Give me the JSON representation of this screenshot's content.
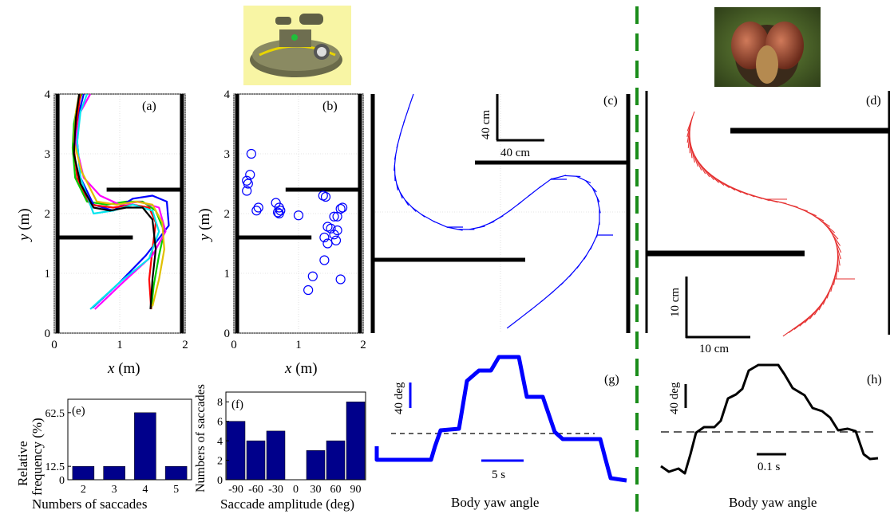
{
  "chart_data": [
    {
      "panel": "(a)",
      "type": "line",
      "xlabel_var": "x",
      "xlabel_unit": " (m)",
      "ylabel_var": "y",
      "ylabel_unit": " (m)",
      "xlim": [
        0,
        2
      ],
      "ylim": [
        0,
        4
      ],
      "xticks": [
        "0",
        "1",
        "2"
      ],
      "yticks": [
        "0",
        "1",
        "2",
        "3",
        "4"
      ],
      "grid": true,
      "walls": [
        {
          "x": [
            0.05,
            0.05
          ],
          "y": [
            0,
            4
          ]
        },
        {
          "x": [
            1.95,
            1.95
          ],
          "y": [
            0,
            4
          ]
        },
        {
          "x": [
            0.05,
            1.2
          ],
          "y": [
            1.6,
            1.6
          ]
        },
        {
          "x": [
            0.8,
            1.95
          ],
          "y": [
            2.4,
            2.4
          ]
        }
      ],
      "series": [
        {
          "color": "#00cc00",
          "x": [
            1.48,
            1.52,
            1.6,
            1.68,
            1.55,
            1.35,
            1.1,
            0.8,
            0.5,
            0.32,
            0.28,
            0.3,
            0.35,
            0.42
          ],
          "y": [
            0.4,
            0.8,
            1.3,
            1.7,
            2.05,
            2.2,
            2.2,
            2.15,
            2.2,
            2.6,
            3.1,
            3.5,
            3.8,
            4.0
          ]
        },
        {
          "color": "#0000ff",
          "x": [
            0.58,
            1.0,
            1.4,
            1.75,
            1.72,
            1.5,
            1.2,
            0.9,
            0.6,
            0.4,
            0.35,
            0.38,
            0.45
          ],
          "y": [
            0.42,
            0.85,
            1.3,
            1.8,
            2.2,
            2.3,
            2.25,
            2.05,
            2.15,
            2.6,
            3.2,
            3.7,
            4.0
          ]
        },
        {
          "color": "#ff0000",
          "x": [
            1.48,
            1.45,
            1.5,
            1.55,
            1.45,
            1.2,
            0.9,
            0.55,
            0.35,
            0.3,
            0.35,
            0.4
          ],
          "y": [
            0.4,
            0.9,
            1.4,
            1.85,
            2.1,
            2.15,
            2.1,
            2.15,
            2.6,
            3.1,
            3.6,
            4.0
          ]
        },
        {
          "color": "#ff00ff",
          "x": [
            0.62,
            1.05,
            1.5,
            1.7,
            1.6,
            1.3,
            1.0,
            0.7,
            0.45,
            0.32,
            0.4,
            0.55
          ],
          "y": [
            0.4,
            0.85,
            1.3,
            1.7,
            2.1,
            2.2,
            2.15,
            2.3,
            2.6,
            3.2,
            3.7,
            4.0
          ]
        },
        {
          "color": "#00e5ee",
          "x": [
            0.55,
            1.0,
            1.45,
            1.6,
            1.5,
            1.2,
            0.9,
            0.6,
            0.4,
            0.35,
            0.4,
            0.5
          ],
          "y": [
            0.4,
            0.85,
            1.25,
            1.7,
            2.05,
            2.15,
            2.05,
            2.0,
            2.6,
            3.2,
            3.7,
            4.0
          ]
        },
        {
          "color": "#e0c000",
          "x": [
            1.5,
            1.6,
            1.68,
            1.65,
            1.5,
            1.25,
            0.95,
            0.65,
            0.42,
            0.3,
            0.33,
            0.38
          ],
          "y": [
            0.45,
            0.9,
            1.4,
            1.85,
            2.15,
            2.2,
            2.15,
            2.2,
            2.7,
            3.2,
            3.7,
            4.0
          ]
        },
        {
          "color": "#000000",
          "x": [
            1.47,
            1.5,
            1.55,
            1.5,
            1.35,
            1.1,
            0.85,
            0.6,
            0.4,
            0.3,
            0.33,
            0.38
          ],
          "y": [
            0.4,
            0.9,
            1.4,
            1.9,
            2.1,
            2.1,
            2.05,
            2.1,
            2.5,
            3.0,
            3.6,
            4.0
          ]
        }
      ]
    },
    {
      "panel": "(b)",
      "type": "scatter",
      "xlabel_var": "x",
      "xlabel_unit": " (m)",
      "ylabel_var": "y",
      "ylabel_unit": " (m)",
      "xlim": [
        0,
        2
      ],
      "ylim": [
        0,
        4
      ],
      "xticks": [
        "0",
        "1",
        "2"
      ],
      "yticks": [
        "0",
        "1",
        "2",
        "3",
        "4"
      ],
      "grid": true,
      "walls": [
        {
          "x": [
            0.05,
            0.05
          ],
          "y": [
            0,
            4
          ]
        },
        {
          "x": [
            1.95,
            1.95
          ],
          "y": [
            0,
            4
          ]
        },
        {
          "x": [
            0.05,
            1.2
          ],
          "y": [
            1.6,
            1.6
          ]
        },
        {
          "x": [
            0.8,
            1.95
          ],
          "y": [
            2.4,
            2.4
          ]
        }
      ],
      "x": [
        0.27,
        0.25,
        0.2,
        0.22,
        0.2,
        0.38,
        0.35,
        0.65,
        0.7,
        0.72,
        0.7,
        0.68,
        1.0,
        1.38,
        1.42,
        1.55,
        1.5,
        1.45,
        1.55,
        1.4,
        1.58,
        1.6,
        1.45,
        1.65,
        1.68,
        1.4,
        1.6,
        1.22,
        1.15,
        1.65
      ],
      "y": [
        3.0,
        2.65,
        2.55,
        2.5,
        2.38,
        2.1,
        2.05,
        2.18,
        2.1,
        2.05,
        2.0,
        2.02,
        1.97,
        2.3,
        2.28,
        1.95,
        1.75,
        1.78,
        1.65,
        1.6,
        1.55,
        1.72,
        1.5,
        2.08,
        2.1,
        1.22,
        1.95,
        0.95,
        0.72,
        0.9
      ]
    },
    {
      "panel": "(e)",
      "type": "bar",
      "categories": [
        "2",
        "3",
        "4",
        "5"
      ],
      "values": [
        12.5,
        12.5,
        62.5,
        12.5
      ],
      "yticks": [
        "0",
        "12.5",
        "62.5"
      ],
      "ylim": [
        0,
        75
      ],
      "xlabel": "Numbers of saccades",
      "ylabel_lines": [
        "Relative",
        "frequency (%)"
      ]
    },
    {
      "panel": "(f)",
      "type": "bar",
      "categories": [
        "-90",
        "-60",
        "-30",
        "0",
        "30",
        "60",
        "90"
      ],
      "values": [
        6,
        4,
        5,
        0,
        3,
        4,
        8
      ],
      "yticks": [
        "0",
        "2",
        "4",
        "6",
        "8"
      ],
      "ylim": [
        0,
        9
      ],
      "xlabel": "Saccade amplitude (deg)",
      "ylabel": "Numbers of saccades"
    },
    {
      "panel": "(c)",
      "type": "line",
      "scale_v": "40 cm",
      "scale_h": "40 cm",
      "description_glyphs": "trajectory heading segments"
    },
    {
      "panel": "(d)",
      "type": "line",
      "scale_v": "10 cm",
      "scale_h": "10 cm"
    },
    {
      "panel": "(g)",
      "type": "line",
      "title": "Body yaw angle",
      "scale_v": "40 deg",
      "scale_h": "5 s",
      "color": "#0000ff",
      "y_levels": [
        -60,
        -60,
        0,
        0,
        95,
        110,
        145,
        145,
        45,
        45,
        -20,
        -20,
        -100,
        -100
      ]
    },
    {
      "panel": "(h)",
      "type": "line",
      "title": "Body yaw angle",
      "scale_v": "40 deg",
      "scale_h": "0.1 s",
      "color": "#000000"
    }
  ],
  "figure": {
    "colors": {
      "blue": "#0000ff",
      "red": "#e53030",
      "bar": "#00008b",
      "divider": "#1a8c1a"
    },
    "images": [
      "hovercraft-robot-image",
      "fly-head-photo"
    ]
  }
}
